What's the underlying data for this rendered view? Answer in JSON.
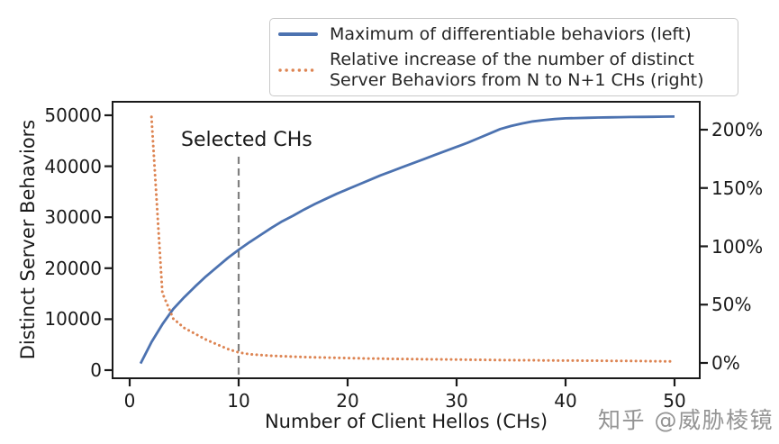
{
  "watermark": {
    "text": "知乎 @威胁棱镜"
  },
  "legend": {
    "items": [
      {
        "lines": [
          "Maximum of differentiable behaviors (left)"
        ],
        "sample": "solid-blue-line"
      },
      {
        "lines": [
          "Relative increase of the number of distinct",
          "Server Behaviors from N to N+1 CHs (right)"
        ],
        "sample": "dotted-orange-line"
      }
    ]
  },
  "chart_data": {
    "type": "line",
    "title": "",
    "xlabel": "Number of Client Hellos (CHs)",
    "ylabel_left": "Distinct Server Behaviors",
    "ylabel_right": "",
    "x_ticks": [
      0,
      10,
      20,
      30,
      40,
      50
    ],
    "y_left_ticks": [
      0,
      10000,
      20000,
      30000,
      40000,
      50000
    ],
    "y_right_ticks_pct": [
      0,
      50,
      100,
      150,
      200
    ],
    "y_right_tick_labels": [
      "0%",
      "50%",
      "100%",
      "150%",
      "200%"
    ],
    "xlim": [
      -1.7,
      52.5
    ],
    "ylim_left": [
      -1600,
      52400
    ],
    "ylim_right_pct": [
      -13,
      224
    ],
    "grid": false,
    "legend_position": "upper right",
    "annotation": {
      "text": "Selected CHs",
      "x": 10,
      "line_style": "dashed",
      "line_color": "#808080"
    },
    "series": [
      {
        "name": "Maximum of differentiable behaviors (left)",
        "data_name": "series-max-differentiable-behaviors",
        "axis": "left",
        "style": "solid",
        "color": "#4C72B0",
        "x": [
          1,
          2,
          3,
          4,
          5,
          6,
          7,
          8,
          9,
          10,
          11,
          12,
          13,
          14,
          15,
          16,
          17,
          18,
          19,
          20,
          21,
          22,
          23,
          24,
          25,
          26,
          27,
          28,
          29,
          30,
          31,
          32,
          33,
          34,
          35,
          36,
          37,
          38,
          39,
          40,
          41,
          42,
          43,
          44,
          45,
          46,
          47,
          48,
          49,
          50
        ],
        "y": [
          1300,
          5500,
          9000,
          12000,
          14300,
          16400,
          18400,
          20200,
          22000,
          23600,
          25100,
          26500,
          27900,
          29200,
          30300,
          31500,
          32600,
          33600,
          34600,
          35500,
          36400,
          37300,
          38200,
          39000,
          39800,
          40600,
          41400,
          42200,
          43000,
          43800,
          44600,
          45500,
          46400,
          47300,
          47900,
          48400,
          48800,
          49050,
          49250,
          49400,
          49450,
          49500,
          49550,
          49600,
          49630,
          49660,
          49680,
          49700,
          49730,
          49750
        ]
      },
      {
        "name": "Relative increase of the number of distinct Server Behaviors from N to N+1 CHs (right)",
        "data_name": "series-relative-increase-server-behaviors",
        "axis": "right",
        "style": "dotted",
        "color": "#DD8452",
        "unit": "%",
        "x": [
          2,
          3,
          4,
          5,
          6,
          7,
          8,
          9,
          10,
          11,
          12,
          13,
          14,
          15,
          16,
          17,
          18,
          19,
          20,
          21,
          22,
          23,
          24,
          25,
          26,
          27,
          28,
          29,
          30,
          31,
          32,
          33,
          34,
          35,
          36,
          37,
          38,
          39,
          40,
          41,
          42,
          43,
          44,
          45,
          46,
          47,
          48,
          49,
          50
        ],
        "y": [
          211,
          60,
          38,
          30,
          25,
          20,
          16,
          12,
          9,
          7.5,
          6.8,
          6.2,
          5.8,
          5.4,
          5.1,
          4.8,
          4.6,
          4.4,
          4.2,
          4.0,
          3.8,
          3.7,
          3.5,
          3.4,
          3.3,
          3.2,
          3.1,
          3.0,
          2.9,
          2.8,
          2.7,
          2.6,
          2.5,
          2.4,
          2.3,
          2.3,
          2.2,
          2.1,
          2.0,
          2.0,
          1.9,
          1.9,
          1.8,
          1.8,
          1.7,
          1.6,
          1.5,
          1.4,
          1.3
        ]
      }
    ]
  }
}
